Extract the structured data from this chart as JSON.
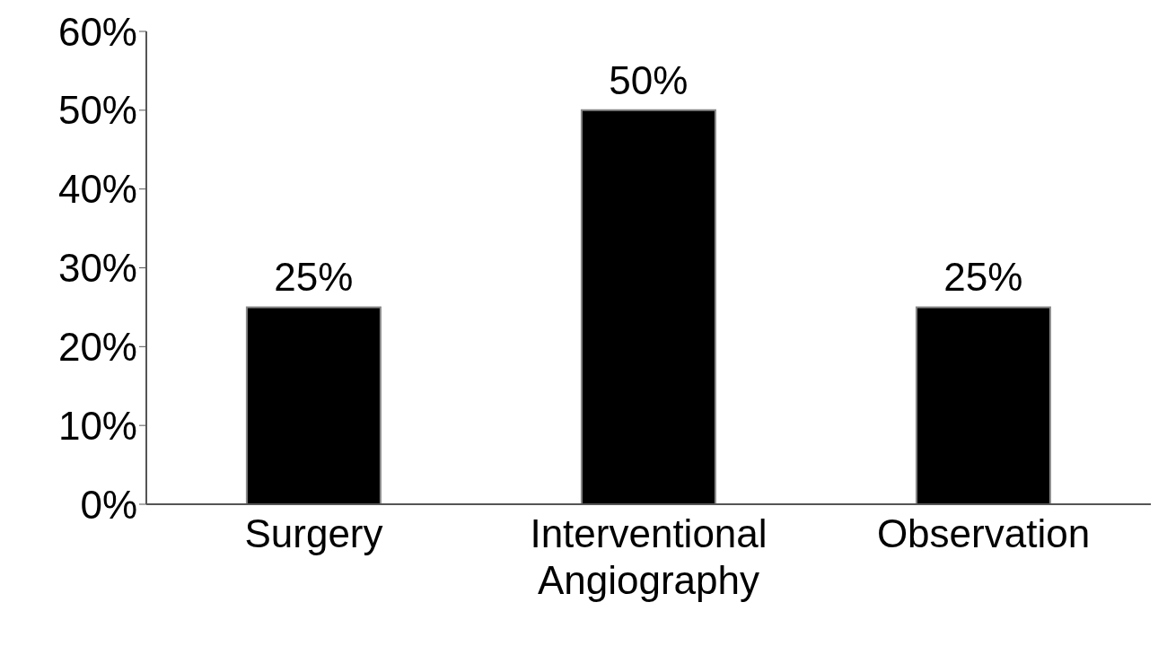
{
  "chart_data": {
    "type": "bar",
    "categories": [
      "Surgery",
      "Interventional Angiography",
      "Observation"
    ],
    "values": [
      25,
      50,
      25
    ],
    "value_labels": [
      "25%",
      "50%",
      "25%"
    ],
    "color": "#000000",
    "ylim": [
      0,
      60
    ],
    "yticks": [
      {
        "value": 0,
        "label": "0%"
      },
      {
        "value": 10,
        "label": "10%"
      },
      {
        "value": 20,
        "label": "20%"
      },
      {
        "value": 30,
        "label": "30%"
      },
      {
        "value": 40,
        "label": "40%"
      },
      {
        "value": 50,
        "label": "50%"
      },
      {
        "value": 60,
        "label": "60%"
      }
    ],
    "grid": false
  }
}
